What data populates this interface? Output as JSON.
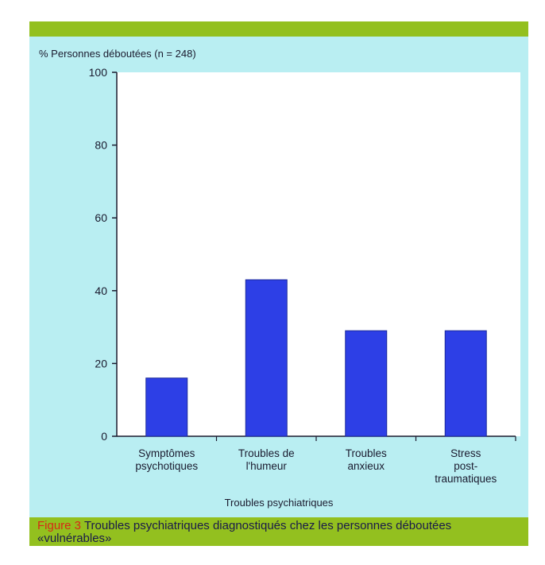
{
  "chart_data": {
    "type": "bar",
    "ylabel": "% Personnes déboutées (n = 248)",
    "xlabel": "Troubles psychiatriques",
    "categories": [
      [
        "Symptômes",
        "psychotiques"
      ],
      [
        "Troubles de",
        "l'humeur"
      ],
      [
        "Troubles",
        "anxieux"
      ],
      [
        "Stress",
        "post-",
        "traumatiques"
      ]
    ],
    "values": [
      16,
      43,
      29,
      29
    ],
    "ylim": [
      0,
      100
    ],
    "yticks": [
      0,
      20,
      40,
      60,
      80,
      100
    ],
    "grid": false,
    "bar_color": "#2d3fe6"
  },
  "caption": {
    "figure_label": "Figure 3",
    "text": "Troubles psychiatriques diagnostiqués chez les personnes déboutées «vulnérables»"
  },
  "colors": {
    "panel_background": "#b9eef2",
    "band": "#93c01f",
    "plot_area": "#ffffff"
  }
}
